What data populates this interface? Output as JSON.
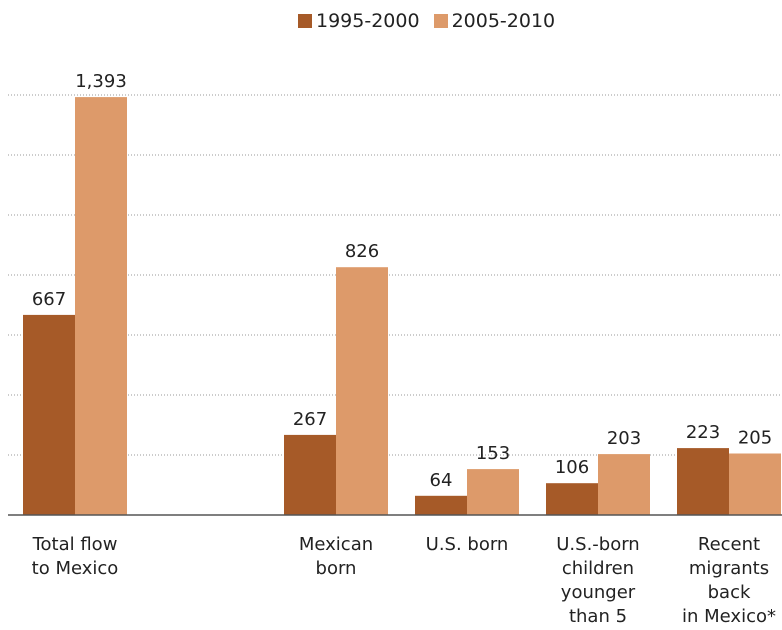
{
  "chart_data": {
    "type": "bar",
    "categories": [
      "Total flow\nto Mexico",
      "Mexican\nborn",
      "U.S. born",
      "U.S.-born\nchildren\nyounger\nthan 5",
      "Recent\nmigrants\nback\nin Mexico*"
    ],
    "series": [
      {
        "name": "1995-2000",
        "values": [
          667,
          267,
          64,
          106,
          223
        ],
        "labels": [
          "667",
          "267",
          "64",
          "106",
          "223"
        ],
        "color": "#a65a28"
      },
      {
        "name": "2005-2010",
        "values": [
          1393,
          826,
          153,
          203,
          205
        ],
        "labels": [
          "1,393",
          "826",
          "153",
          "203",
          "205"
        ],
        "color": "#dd9a6a"
      }
    ],
    "ylim": [
      0,
      1400
    ],
    "grid": true,
    "legend": "top-center",
    "title": "",
    "xlabel": "",
    "ylabel": ""
  }
}
